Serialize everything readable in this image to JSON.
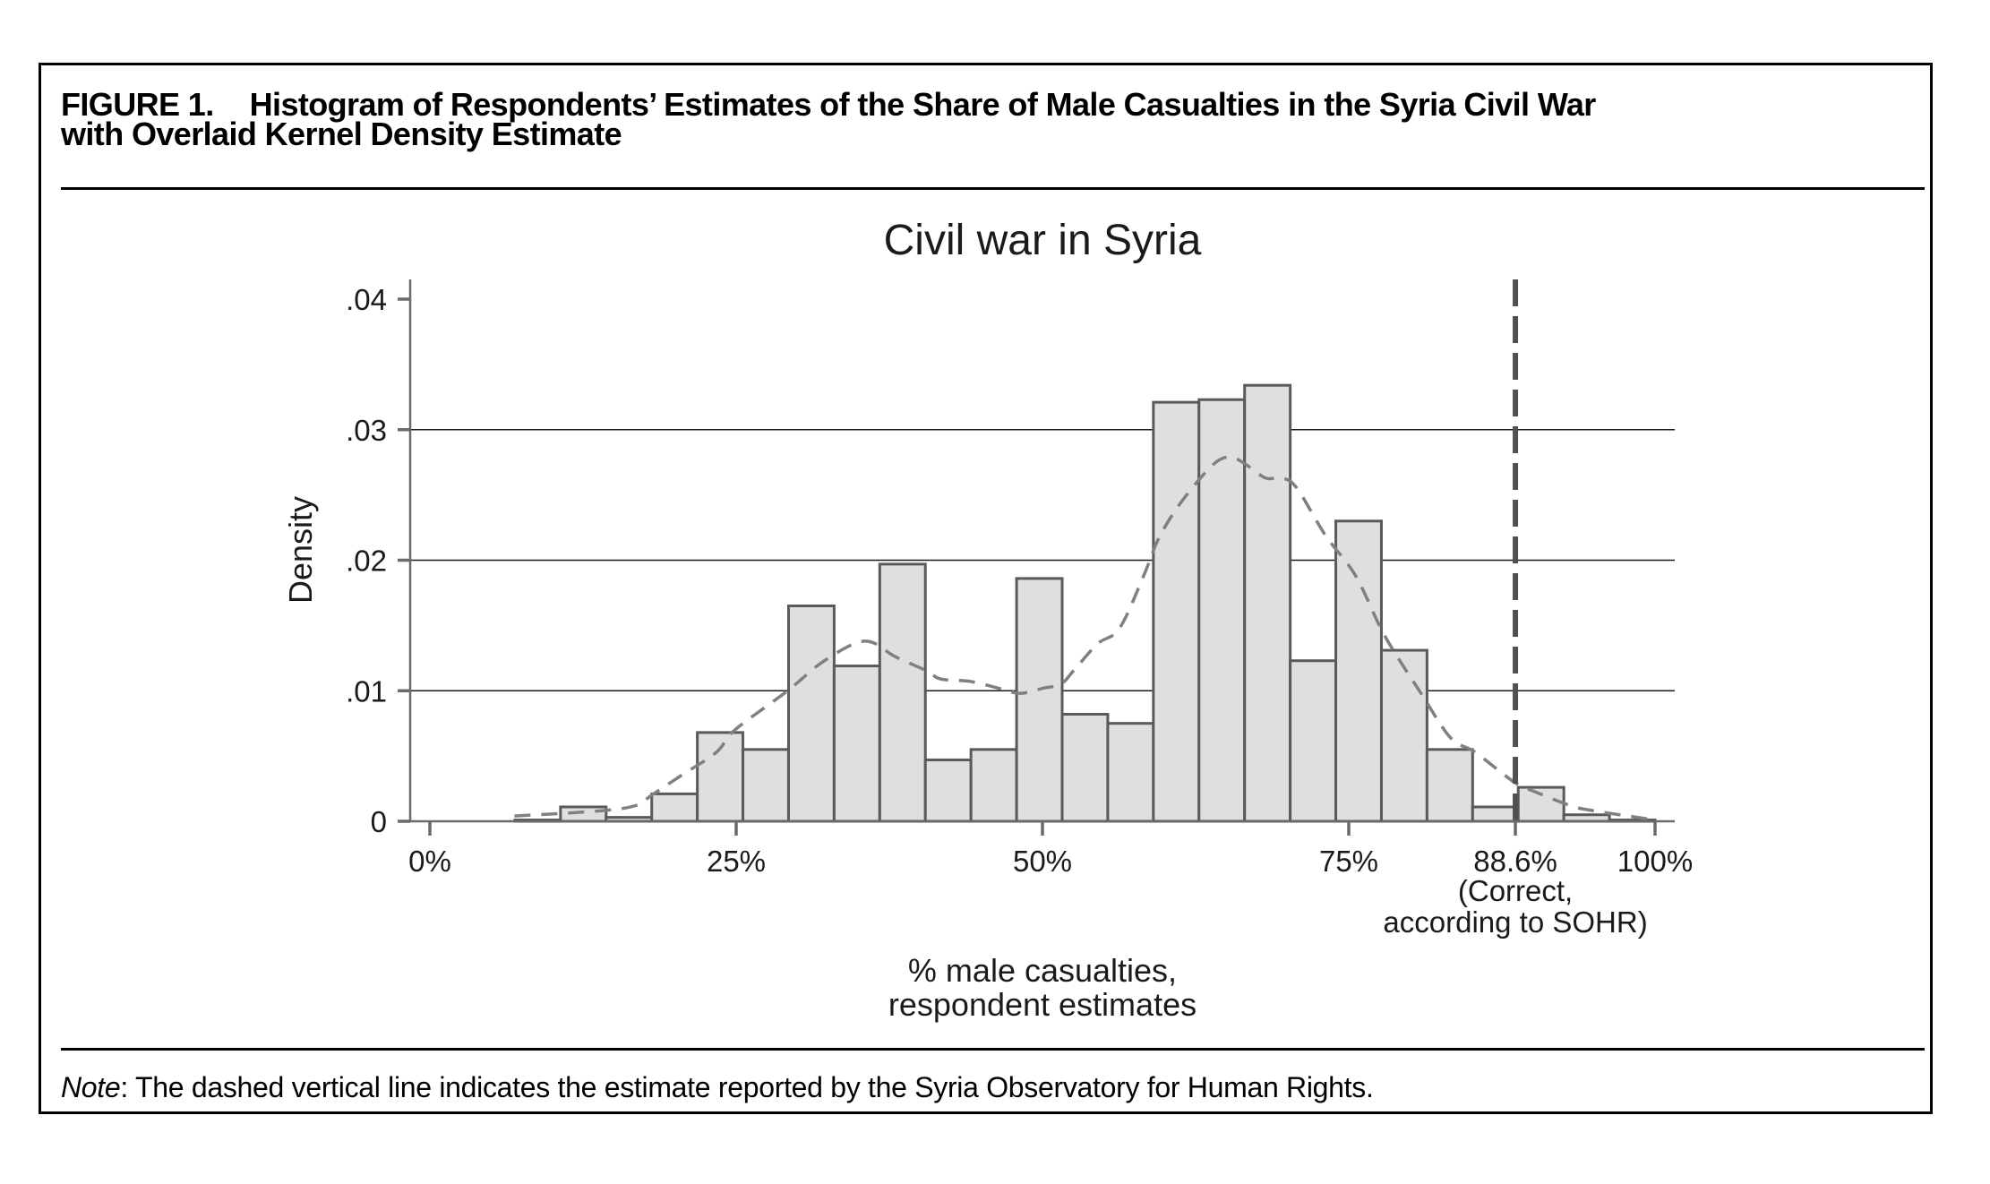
{
  "figure": {
    "number": "FIGURE 1.",
    "title_line1": "Histogram of Respondents’ Estimates of the Share of Male Casualties in the Syria Civil War",
    "title_line2": "with Overlaid Kernel Density Estimate",
    "note_label": "Note",
    "note_text": ": The dashed vertical line indicates the estimate reported by the Syria Observatory for Human Rights."
  },
  "chart_data": {
    "type": "bar",
    "subtype": "histogram_with_kde",
    "title": "Civil war in Syria",
    "xlabel": "% male casualties,\nrespondent estimates",
    "xlabel_lines": [
      "% male casualties,",
      "respondent estimates"
    ],
    "ylabel": "Density",
    "xlim": [
      0,
      100
    ],
    "ylim": [
      0,
      0.04
    ],
    "grid": "horizontal",
    "legend": "none",
    "x_ticks": [
      {
        "value": 0,
        "label": "0%"
      },
      {
        "value": 25,
        "label": "25%"
      },
      {
        "value": 50,
        "label": "50%"
      },
      {
        "value": 75,
        "label": "75%"
      },
      {
        "value": 88.6,
        "label": "88.6%",
        "sublabel_lines": [
          "(Correct,",
          "according to SOHR)"
        ]
      },
      {
        "value": 100,
        "label": "100%"
      }
    ],
    "y_ticks": [
      {
        "value": 0,
        "label": "0"
      },
      {
        "value": 0.01,
        "label": ".01"
      },
      {
        "value": 0.02,
        "label": ".02"
      },
      {
        "value": 0.03,
        "label": ".03"
      },
      {
        "value": 0.04,
        "label": ".04"
      }
    ],
    "gridlines_y": [
      0.01,
      0.02,
      0.03
    ],
    "histogram": {
      "bin_start": 6.94,
      "bin_width": 3.7224,
      "densities": [
        0.0001,
        0.0011,
        0.0003,
        0.0021,
        0.0068,
        0.0055,
        0.0165,
        0.0119,
        0.0197,
        0.0047,
        0.0055,
        0.0186,
        0.0082,
        0.0075,
        0.0321,
        0.0323,
        0.0334,
        0.0123,
        0.023,
        0.0131,
        0.0055,
        0.0011,
        0.0026,
        0.0005,
        0.0001
      ]
    },
    "kde": {
      "name": "Kernel density estimate",
      "x": [
        6.9,
        13.9,
        16.8,
        18.1,
        20.5,
        23.4,
        24.9,
        29.2,
        32.2,
        35.5,
        38.0,
        40.6,
        41.7,
        44.2,
        46.8,
        48.2,
        50.1,
        51.5,
        52.6,
        54.5,
        56.3,
        58.3,
        59.4,
        60.9,
        62.9,
        64.3,
        65.4,
        66.5,
        68.2,
        69.4,
        70.7,
        73.1,
        75.5,
        77.5,
        78.7,
        80.9,
        83.3,
        85.3,
        88.5,
        90.1,
        93.1,
        95.0,
        100.0
      ],
      "y": [
        0.0004,
        0.0008,
        0.0012,
        0.002,
        0.0035,
        0.0053,
        0.007,
        0.01,
        0.0123,
        0.0138,
        0.0126,
        0.0115,
        0.0109,
        0.0107,
        0.0101,
        0.0098,
        0.0102,
        0.0105,
        0.0116,
        0.0136,
        0.0148,
        0.0189,
        0.0215,
        0.0239,
        0.0263,
        0.0276,
        0.0279,
        0.0274,
        0.0263,
        0.0263,
        0.0256,
        0.0219,
        0.0189,
        0.015,
        0.013,
        0.0098,
        0.0064,
        0.0053,
        0.003,
        0.0023,
        0.0012,
        0.0008,
        0.0001
      ]
    },
    "reference_line": {
      "x": 88.6,
      "style": "dashed",
      "label": "Correct, according to SOHR"
    },
    "colors": {
      "bar_fill": "#dedfe1",
      "bar_stroke": "#5a5a5c",
      "kde_line": "#808080",
      "reference_line": "#505052",
      "axis": "#6a6a6a",
      "grid": "#1a1a1a"
    }
  }
}
